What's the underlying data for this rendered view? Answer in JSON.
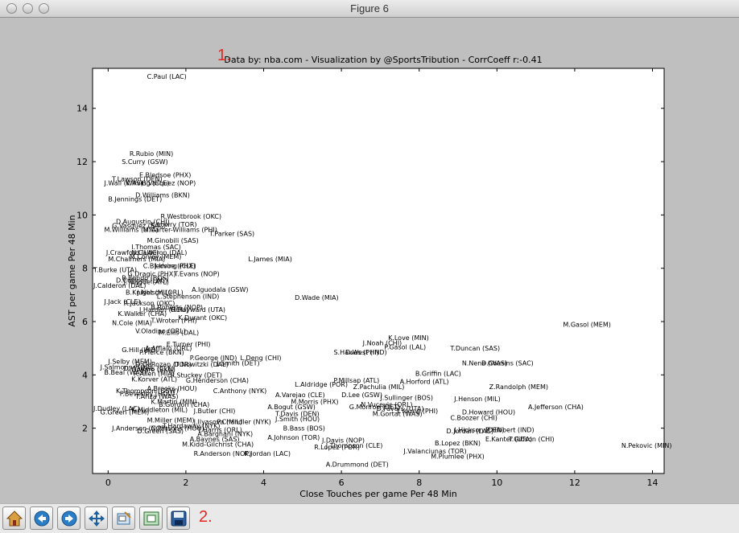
{
  "window": {
    "title": "Figure 6"
  },
  "annotations": {
    "num1": "1.",
    "num2": "2."
  },
  "chart_data": {
    "type": "scatter",
    "title": "Data by: nba.com - Visualization by @SportsTribution - CorrCoeff r:-0.41",
    "xlabel": "Close Touches per game Per 48 Min",
    "ylabel": "AST per game Per 48 Min",
    "xlim": [
      -0.4,
      14.3
    ],
    "ylim": [
      0.3,
      15.5
    ],
    "xticks": [
      0,
      2,
      4,
      6,
      8,
      10,
      12,
      14
    ],
    "yticks": [
      2,
      4,
      6,
      8,
      10,
      12,
      14
    ],
    "grid": false,
    "points": [
      {
        "label": "C.Paul (LAC)",
        "x": 1.0,
        "y": 15.2
      },
      {
        "label": "R.Rubio (MIN)",
        "x": 0.55,
        "y": 12.3
      },
      {
        "label": "S.Curry (GSW)",
        "x": 0.35,
        "y": 12.0
      },
      {
        "label": "E.Bledsoe (PHX)",
        "x": 0.8,
        "y": 11.5
      },
      {
        "label": "T.Lawson (DEN)",
        "x": 0.1,
        "y": 11.35
      },
      {
        "label": "J.Wall (WAS)",
        "x": -0.1,
        "y": 11.2
      },
      {
        "label": "K.Irving (CLE)",
        "x": 0.45,
        "y": 11.2
      },
      {
        "label": "G.Vasquez (NOP)",
        "x": 0.85,
        "y": 11.2
      },
      {
        "label": "D.Williams (BKN)",
        "x": 0.7,
        "y": 10.75
      },
      {
        "label": "B.Jennings (DET)",
        "x": 0.0,
        "y": 10.6
      },
      {
        "label": "R.Westbrook (OKC)",
        "x": 1.35,
        "y": 9.95
      },
      {
        "label": "D.Augustin (CHI)",
        "x": 0.2,
        "y": 9.75
      },
      {
        "label": "K.Lowry (TOR)",
        "x": 1.1,
        "y": 9.65
      },
      {
        "label": "G.Vasquez (SAC)",
        "x": 0.1,
        "y": 9.6
      },
      {
        "label": "M.Williams (UTA)",
        "x": -0.1,
        "y": 9.45
      },
      {
        "label": "M.Carter-Williams (PHI)",
        "x": 0.9,
        "y": 9.45
      },
      {
        "label": "T.Parker (SAS)",
        "x": 2.6,
        "y": 9.3
      },
      {
        "label": "M.Ginobili (SAS)",
        "x": 1.0,
        "y": 9.05
      },
      {
        "label": "I.Thomas (SAC)",
        "x": 0.6,
        "y": 8.8
      },
      {
        "label": "J.Crawford (LAC)",
        "x": -0.05,
        "y": 8.6
      },
      {
        "label": "N.Calderon (DAL)",
        "x": 0.6,
        "y": 8.6
      },
      {
        "label": "M.Conley (MEM)",
        "x": 0.55,
        "y": 8.45
      },
      {
        "label": "M.Chalmers (MIA)",
        "x": 0.0,
        "y": 8.35
      },
      {
        "label": "L.James (MIA)",
        "x": 3.6,
        "y": 8.35
      },
      {
        "label": "C.Bledsoe (PHX)",
        "x": 0.9,
        "y": 8.1
      },
      {
        "label": "J.Irving (CLE)",
        "x": 1.2,
        "y": 8.1
      },
      {
        "label": "T.Burke (UTA)",
        "x": -0.4,
        "y": 7.95
      },
      {
        "label": "G.Dragic (PHX)",
        "x": 0.5,
        "y": 7.8
      },
      {
        "label": "T.Evans (NOP)",
        "x": 1.7,
        "y": 7.8
      },
      {
        "label": "R.Rondo (BOS)",
        "x": 0.35,
        "y": 7.65
      },
      {
        "label": "D.Collison (LAC)",
        "x": 0.2,
        "y": 7.55
      },
      {
        "label": "J.Teague (ATL)",
        "x": 0.4,
        "y": 7.5
      },
      {
        "label": "J.Calderon (DAL)",
        "x": -0.5,
        "y": 7.35
      },
      {
        "label": "B.Knight (MIL)",
        "x": 0.45,
        "y": 7.1
      },
      {
        "label": "J.Nelson (ORL)",
        "x": 0.75,
        "y": 7.1
      },
      {
        "label": "L.Stephenson (IND)",
        "x": 1.25,
        "y": 6.95
      },
      {
        "label": "A.Iguodala (GSW)",
        "x": 2.15,
        "y": 7.2
      },
      {
        "label": "D.Wade (MIA)",
        "x": 4.8,
        "y": 6.9
      },
      {
        "label": "J.Jack (CLE)",
        "x": -0.1,
        "y": 6.75
      },
      {
        "label": "R.Jackson (OKC)",
        "x": 0.4,
        "y": 6.7
      },
      {
        "label": "B.Roberts (NOP)",
        "x": 1.1,
        "y": 6.55
      },
      {
        "label": "J.Harden (HOU)",
        "x": 0.8,
        "y": 6.45
      },
      {
        "label": "G.Hayward (UTA)",
        "x": 1.6,
        "y": 6.45
      },
      {
        "label": "K.Walker (CHA)",
        "x": 0.25,
        "y": 6.3
      },
      {
        "label": "K.Durant (OKC)",
        "x": 1.8,
        "y": 6.15
      },
      {
        "label": "T.Wroten (PHI)",
        "x": 1.1,
        "y": 6.05
      },
      {
        "label": "N.Cole (MIA)",
        "x": 0.1,
        "y": 5.95
      },
      {
        "label": "V.Oladipo (ORL)",
        "x": 0.7,
        "y": 5.65
      },
      {
        "label": "M.Ellis (DAL)",
        "x": 1.3,
        "y": 5.6
      },
      {
        "label": "E.Turner (PHI)",
        "x": 1.5,
        "y": 5.15
      },
      {
        "label": "A.Afflalo (ORL)",
        "x": 0.95,
        "y": 5.0
      },
      {
        "label": "G.Hill (IND)",
        "x": 0.35,
        "y": 4.95
      },
      {
        "label": "P.Pierce (BKN)",
        "x": 0.8,
        "y": 4.85
      },
      {
        "label": "J.Noah (CHI)",
        "x": 6.55,
        "y": 5.2
      },
      {
        "label": "K.Love (MIN)",
        "x": 7.2,
        "y": 5.4
      },
      {
        "label": "P.Gasol (LAL)",
        "x": 7.1,
        "y": 5.05
      },
      {
        "label": "T.Duncan (SAS)",
        "x": 8.8,
        "y": 5.0
      },
      {
        "label": "S.Hawes (PHI)",
        "x": 5.8,
        "y": 4.85
      },
      {
        "label": "D.West (IND)",
        "x": 6.1,
        "y": 4.85
      },
      {
        "label": "M.Gasol (MEM)",
        "x": 11.7,
        "y": 5.9
      },
      {
        "label": "P.George (IND)",
        "x": 2.1,
        "y": 4.65
      },
      {
        "label": "L.Deng (CHI)",
        "x": 3.4,
        "y": 4.65
      },
      {
        "label": "D.Nowitzki (DAL)",
        "x": 1.7,
        "y": 4.4
      },
      {
        "label": "J.Smith (DET)",
        "x": 2.8,
        "y": 4.45
      },
      {
        "label": "J.Selby (MEM)",
        "x": 0.0,
        "y": 4.5
      },
      {
        "label": "J.Salmons (TOR)",
        "x": -0.2,
        "y": 4.3
      },
      {
        "label": "B.Beal (WAS)",
        "x": -0.1,
        "y": 4.1
      },
      {
        "label": "D.Waiters (CLE)",
        "x": 0.4,
        "y": 4.25
      },
      {
        "label": "R.Allen (MIA)",
        "x": 0.65,
        "y": 4.05
      },
      {
        "label": "N.Nene (WAS)",
        "x": 9.1,
        "y": 4.45
      },
      {
        "label": "D.Cousins (SAC)",
        "x": 9.6,
        "y": 4.45
      },
      {
        "label": "B.Griffin (LAC)",
        "x": 7.9,
        "y": 4.05
      },
      {
        "label": "A.Horford (ATL)",
        "x": 7.5,
        "y": 3.75
      },
      {
        "label": "P.Millsap (ATL)",
        "x": 5.8,
        "y": 3.8
      },
      {
        "label": "L.Aldridge (POR)",
        "x": 4.8,
        "y": 3.65
      },
      {
        "label": "Z.Pachulia (MIL)",
        "x": 6.3,
        "y": 3.55
      },
      {
        "label": "Z.Randolph (MEM)",
        "x": 9.8,
        "y": 3.55
      },
      {
        "label": "D.Lee (GSW)",
        "x": 6.0,
        "y": 3.25
      },
      {
        "label": "J.Henson (MIL)",
        "x": 8.9,
        "y": 3.1
      },
      {
        "label": "J.Sullinger (BOS)",
        "x": 7.0,
        "y": 3.15
      },
      {
        "label": "R.Stuckey (DET)",
        "x": 1.6,
        "y": 4.0
      },
      {
        "label": "K.Korver (ATL)",
        "x": 0.6,
        "y": 3.85
      },
      {
        "label": "C.Anthony (NYK)",
        "x": 2.7,
        "y": 3.4
      },
      {
        "label": "A.Varejao (CLE)",
        "x": 4.3,
        "y": 3.25
      },
      {
        "label": "M.Morris (PHX)",
        "x": 4.7,
        "y": 3.0
      },
      {
        "label": "A.Bogut (GSW)",
        "x": 4.1,
        "y": 2.8
      },
      {
        "label": "N.Vucevic (ORL)",
        "x": 6.5,
        "y": 2.9
      },
      {
        "label": "G.Monroe (DET)",
        "x": 6.2,
        "y": 2.8
      },
      {
        "label": "D.Favors (UTA)",
        "x": 6.9,
        "y": 2.75
      },
      {
        "label": "T.Young (PHI)",
        "x": 7.4,
        "y": 2.65
      },
      {
        "label": "M.Gortat (WAS)",
        "x": 6.8,
        "y": 2.55
      },
      {
        "label": "D.Howard (HOU)",
        "x": 9.1,
        "y": 2.6
      },
      {
        "label": "A.Jefferson (CHA)",
        "x": 10.8,
        "y": 2.8
      },
      {
        "label": "C.Boozer (CHI)",
        "x": 8.8,
        "y": 2.4
      },
      {
        "label": "D.Jordan (LAC)",
        "x": 8.7,
        "y": 1.9
      },
      {
        "label": "J.Hickson (DEN)",
        "x": 8.9,
        "y": 1.95
      },
      {
        "label": "R.Hibbert (IND)",
        "x": 9.7,
        "y": 1.95
      },
      {
        "label": "E.Kanter (UTA)",
        "x": 9.7,
        "y": 1.6
      },
      {
        "label": "T.Gibson (CHI)",
        "x": 10.3,
        "y": 1.6
      },
      {
        "label": "N.Pekovic (MIN)",
        "x": 13.2,
        "y": 1.35
      },
      {
        "label": "J.Dudley (LAC)",
        "x": -0.4,
        "y": 2.75
      },
      {
        "label": "G.Green (MEM)",
        "x": -0.2,
        "y": 2.6
      },
      {
        "label": "K.Martin (MIN)",
        "x": 1.1,
        "y": 3.0
      },
      {
        "label": "T.Ariza (WAS)",
        "x": 0.7,
        "y": 3.2
      },
      {
        "label": "P.Beverley (HOU)",
        "x": 0.3,
        "y": 3.3
      },
      {
        "label": "J.Butler (CHI)",
        "x": 2.2,
        "y": 2.65
      },
      {
        "label": "J.Anderson (NOP)",
        "x": 0.1,
        "y": 2.0
      },
      {
        "label": "C.Parsons (HOU)",
        "x": 1.1,
        "y": 2.0
      },
      {
        "label": "D.Green (SAS)",
        "x": 0.75,
        "y": 1.9
      },
      {
        "label": "T.Harris (ORL)",
        "x": 2.3,
        "y": 1.95
      },
      {
        "label": "A.Baynes (SAS)",
        "x": 2.1,
        "y": 1.6
      },
      {
        "label": "M.Kidd-Gilchrist (CHA)",
        "x": 1.9,
        "y": 1.4
      },
      {
        "label": "R.Anderson (NOP)",
        "x": 2.2,
        "y": 1.05
      },
      {
        "label": "K.Jordan (LAC)",
        "x": 3.5,
        "y": 1.05
      },
      {
        "label": "A.Johnson (TOR)",
        "x": 4.1,
        "y": 1.65
      },
      {
        "label": "J.Davis (NOP)",
        "x": 5.5,
        "y": 1.55
      },
      {
        "label": "R.Lopez (POR)",
        "x": 5.3,
        "y": 1.3
      },
      {
        "label": "J.Thompson (CLE)",
        "x": 5.6,
        "y": 1.35
      },
      {
        "label": "J.Valanciunas (TOR)",
        "x": 7.6,
        "y": 1.15
      },
      {
        "label": "B.Lopez (BKN)",
        "x": 8.4,
        "y": 1.45
      },
      {
        "label": "M.Plumlee (PHX)",
        "x": 8.3,
        "y": 0.95
      },
      {
        "label": "A.Drummond (DET)",
        "x": 5.6,
        "y": 0.65
      },
      {
        "label": "J.Smith (HOU)",
        "x": 4.3,
        "y": 2.35
      },
      {
        "label": "B.Bass (BOS)",
        "x": 4.5,
        "y": 2.0
      },
      {
        "label": "T.Davis (DEN)",
        "x": 4.3,
        "y": 2.55
      },
      {
        "label": "J.Ilyasova (MIL)",
        "x": 2.2,
        "y": 2.25
      },
      {
        "label": "A.Bargnani (NYK)",
        "x": 2.3,
        "y": 1.8
      },
      {
        "label": "P.Chandler (NYK)",
        "x": 2.8,
        "y": 2.25
      },
      {
        "label": "T.Hardaway (NYK)",
        "x": 1.4,
        "y": 2.1
      },
      {
        "label": "M.Miller (MEM)",
        "x": 1.0,
        "y": 2.3
      },
      {
        "label": "G.Henderson (CHA)",
        "x": 2.0,
        "y": 3.8
      },
      {
        "label": "A.Brooks (HOU)",
        "x": 1.0,
        "y": 3.5
      },
      {
        "label": "K.Thompson (GSW)",
        "x": 0.2,
        "y": 3.4
      },
      {
        "label": "B.Gordon (CHA)",
        "x": 1.3,
        "y": 2.9
      },
      {
        "label": "K.Middleton (MIL)",
        "x": 0.6,
        "y": 2.7
      },
      {
        "label": "D.DeRozan (TOR)",
        "x": 0.7,
        "y": 4.4
      },
      {
        "label": "G.Ware (BKN)",
        "x": 0.6,
        "y": 4.2
      }
    ]
  }
}
